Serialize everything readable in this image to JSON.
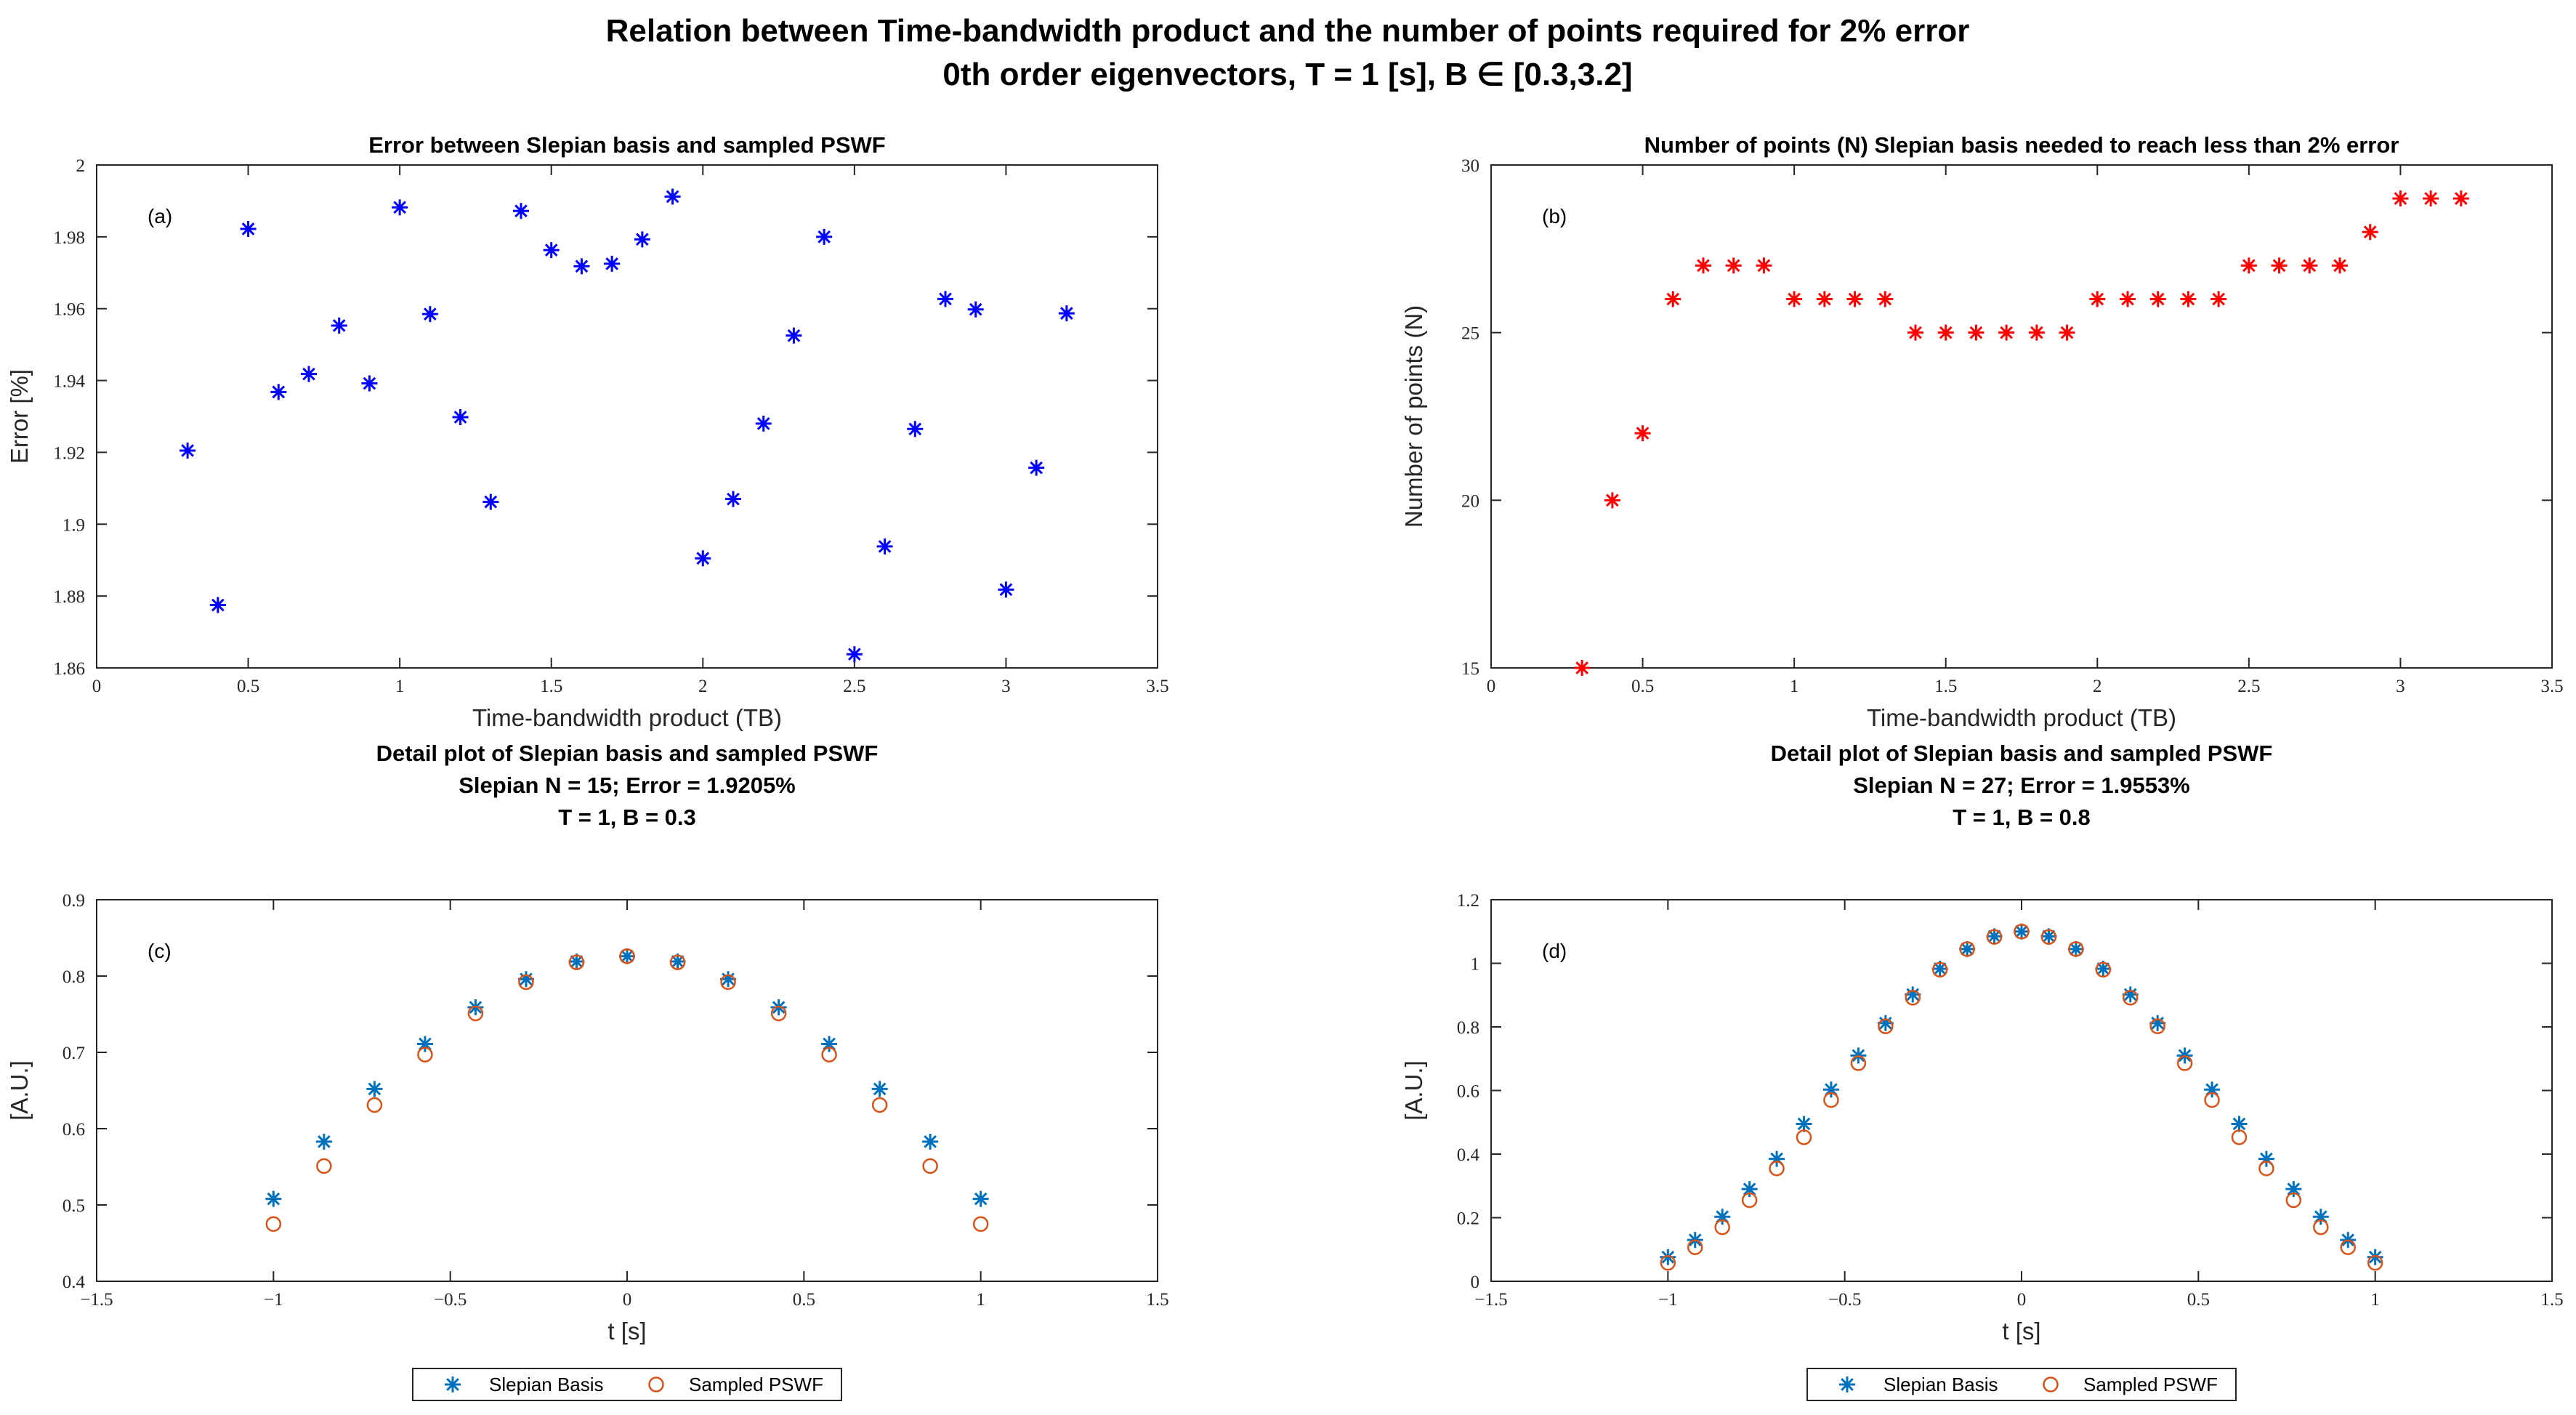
{
  "figure_title": {
    "line1": "Relation between Time-bandwidth product and the number of points required for 2% error",
    "line2": "0th order eigenvectors, T = 1 [s], B ∈ [0.3,3.2]"
  },
  "colors": {
    "blue_star": "#0000ff",
    "red_star": "#ff0000",
    "slepian_star": "#0072bd",
    "pswf_circle": "#d95319",
    "axis": "#262626"
  },
  "chart_data": [
    {
      "id": "a",
      "type": "scatter",
      "panel_label": "(a)",
      "title": [
        "Error between Slepian basis and sampled PSWF"
      ],
      "xlabel": "Time-bandwidth product (TB)",
      "ylabel": "Error [%]",
      "xlim": [
        0,
        3.5
      ],
      "ylim": [
        1.86,
        2.0
      ],
      "xticks": [
        0,
        0.5,
        1,
        1.5,
        2,
        2.5,
        3,
        3.5
      ],
      "xtick_labels": [
        "0",
        "0.5",
        "1",
        "1.5",
        "2",
        "2.5",
        "3",
        "3.5"
      ],
      "yticks": [
        1.86,
        1.88,
        1.9,
        1.92,
        1.94,
        1.96,
        1.98,
        2.0
      ],
      "ytick_labels": [
        "1.86",
        "1.88",
        "1.9",
        "1.92",
        "1.94",
        "1.96",
        "1.98",
        "2"
      ],
      "grid": false,
      "series": [
        {
          "name": "Error",
          "marker": "star",
          "color": "#0000ff",
          "x": [
            0.3,
            0.4,
            0.5,
            0.6,
            0.7,
            0.8,
            0.9,
            1.0,
            1.1,
            1.2,
            1.3,
            1.4,
            1.5,
            1.6,
            1.7,
            1.8,
            1.9,
            2.0,
            2.1,
            2.2,
            2.3,
            2.4,
            2.5,
            2.6,
            2.7,
            2.8,
            2.9,
            3.0,
            3.1,
            3.2
          ],
          "y": [
            1.9205,
            1.8775,
            1.9822,
            1.9368,
            1.9418,
            1.9553,
            1.9392,
            1.9882,
            1.9585,
            1.9298,
            1.9062,
            1.9872,
            1.9763,
            1.9718,
            1.9725,
            1.9793,
            1.9912,
            1.8905,
            1.907,
            1.928,
            1.9525,
            1.98,
            1.8638,
            1.8938,
            1.9265,
            1.9627,
            1.9598,
            1.8818,
            1.9157,
            1.9587
          ]
        }
      ]
    },
    {
      "id": "b",
      "type": "scatter",
      "panel_label": "(b)",
      "title": [
        "Number of points (N) Slepian basis needed to reach less than 2% error"
      ],
      "xlabel": "Time-bandwidth product (TB)",
      "ylabel": "Number of points (N)",
      "xlim": [
        0,
        3.5
      ],
      "ylim": [
        15,
        30
      ],
      "xticks": [
        0,
        0.5,
        1,
        1.5,
        2,
        2.5,
        3,
        3.5
      ],
      "xtick_labels": [
        "0",
        "0.5",
        "1",
        "1.5",
        "2",
        "2.5",
        "3",
        "3.5"
      ],
      "yticks": [
        15,
        20,
        25,
        30
      ],
      "ytick_labels": [
        "15",
        "20",
        "25",
        "30"
      ],
      "grid": false,
      "series": [
        {
          "name": "N",
          "marker": "star",
          "color": "#ff0000",
          "x": [
            0.3,
            0.4,
            0.5,
            0.6,
            0.7,
            0.8,
            0.9,
            1.0,
            1.1,
            1.2,
            1.3,
            1.4,
            1.5,
            1.6,
            1.7,
            1.8,
            1.9,
            2.0,
            2.1,
            2.2,
            2.3,
            2.4,
            2.5,
            2.6,
            2.7,
            2.8,
            2.9,
            3.0,
            3.1,
            3.2
          ],
          "y": [
            15,
            20,
            22,
            26,
            27,
            27,
            27,
            26,
            26,
            26,
            26,
            25,
            25,
            25,
            25,
            25,
            25,
            26,
            26,
            26,
            26,
            26,
            27,
            27,
            27,
            27,
            28,
            29,
            29,
            29
          ]
        }
      ]
    },
    {
      "id": "c",
      "type": "scatter",
      "panel_label": "(c)",
      "title": [
        "Detail plot of Slepian basis and sampled PSWF",
        "Slepian N = 15; Error = 1.9205%",
        "T = 1, B = 0.3"
      ],
      "xlabel": "t [s]",
      "ylabel": "[A.U.]",
      "xlim": [
        -1.5,
        1.5
      ],
      "ylim": [
        0.4,
        0.9
      ],
      "xticks": [
        -1.5,
        -1,
        -0.5,
        0,
        0.5,
        1,
        1.5
      ],
      "xtick_labels": [
        "−1.5",
        "−1",
        "−0.5",
        "0",
        "0.5",
        "1",
        "1.5"
      ],
      "yticks": [
        0.4,
        0.5,
        0.6,
        0.7,
        0.8,
        0.9
      ],
      "ytick_labels": [
        "0.4",
        "0.5",
        "0.6",
        "0.7",
        "0.8",
        "0.9"
      ],
      "grid": false,
      "legend": [
        "Slepian Basis",
        "Sampled PSWF"
      ],
      "series": [
        {
          "name": "Slepian Basis",
          "marker": "star",
          "color": "#0072bd",
          "x": [
            -1.0,
            -0.8571,
            -0.7143,
            -0.5714,
            -0.4286,
            -0.2857,
            -0.1429,
            0.0,
            0.1429,
            0.2857,
            0.4286,
            0.5714,
            0.7143,
            0.8571,
            1.0
          ],
          "y": [
            0.508,
            0.583,
            0.652,
            0.711,
            0.759,
            0.796,
            0.819,
            0.826,
            0.819,
            0.796,
            0.759,
            0.711,
            0.652,
            0.583,
            0.508
          ]
        },
        {
          "name": "Sampled PSWF",
          "marker": "circle",
          "color": "#d95319",
          "x": [
            -1.0,
            -0.8571,
            -0.7143,
            -0.5714,
            -0.4286,
            -0.2857,
            -0.1429,
            0.0,
            0.1429,
            0.2857,
            0.4286,
            0.5714,
            0.7143,
            0.8571,
            1.0
          ],
          "y": [
            0.475,
            0.551,
            0.631,
            0.697,
            0.751,
            0.792,
            0.818,
            0.826,
            0.818,
            0.792,
            0.751,
            0.697,
            0.631,
            0.551,
            0.475
          ]
        }
      ]
    },
    {
      "id": "d",
      "type": "scatter",
      "panel_label": "(d)",
      "title": [
        "Detail plot of Slepian basis and sampled PSWF",
        "Slepian N = 27; Error = 1.9553%",
        "T = 1, B = 0.8"
      ],
      "xlabel": "t [s]",
      "ylabel": "[A.U.]",
      "xlim": [
        -1.5,
        1.5
      ],
      "ylim": [
        0,
        1.2
      ],
      "xticks": [
        -1.5,
        -1,
        -0.5,
        0,
        0.5,
        1,
        1.5
      ],
      "xtick_labels": [
        "−1.5",
        "−1",
        "−0.5",
        "0",
        "0.5",
        "1",
        "1.5"
      ],
      "yticks": [
        0,
        0.2,
        0.4,
        0.6,
        0.8,
        1,
        1.2
      ],
      "ytick_labels": [
        "0",
        "0.2",
        "0.4",
        "0.6",
        "0.8",
        "1",
        "1.2"
      ],
      "grid": false,
      "legend": [
        "Slepian Basis",
        "Sampled PSWF"
      ],
      "series": [
        {
          "name": "Slepian Basis",
          "marker": "star",
          "color": "#0072bd",
          "x": [
            -1.0,
            -0.9231,
            -0.8462,
            -0.7692,
            -0.6923,
            -0.6154,
            -0.5385,
            -0.4615,
            -0.3846,
            -0.3077,
            -0.2308,
            -0.1538,
            -0.0769,
            0.0,
            0.0769,
            0.1538,
            0.2308,
            0.3077,
            0.3846,
            0.4615,
            0.5385,
            0.6154,
            0.6923,
            0.7692,
            0.8462,
            0.9231,
            1.0
          ],
          "y": [
            0.076,
            0.13,
            0.203,
            0.29,
            0.385,
            0.495,
            0.603,
            0.71,
            0.812,
            0.902,
            0.983,
            1.045,
            1.085,
            1.1,
            1.085,
            1.045,
            0.983,
            0.902,
            0.812,
            0.71,
            0.603,
            0.495,
            0.385,
            0.29,
            0.203,
            0.13,
            0.076
          ]
        },
        {
          "name": "Sampled PSWF",
          "marker": "circle",
          "color": "#d95319",
          "x": [
            -1.0,
            -0.9231,
            -0.8462,
            -0.7692,
            -0.6923,
            -0.6154,
            -0.5385,
            -0.4615,
            -0.3846,
            -0.3077,
            -0.2308,
            -0.1538,
            -0.0769,
            0.0,
            0.0769,
            0.1538,
            0.2308,
            0.3077,
            0.3846,
            0.4615,
            0.5385,
            0.6154,
            0.6923,
            0.7692,
            0.8462,
            0.9231,
            1.0
          ],
          "y": [
            0.058,
            0.107,
            0.17,
            0.255,
            0.355,
            0.453,
            0.57,
            0.686,
            0.802,
            0.892,
            0.98,
            1.045,
            1.083,
            1.1,
            1.083,
            1.045,
            0.98,
            0.892,
            0.802,
            0.686,
            0.57,
            0.453,
            0.355,
            0.255,
            0.17,
            0.107,
            0.058
          ]
        }
      ]
    }
  ]
}
